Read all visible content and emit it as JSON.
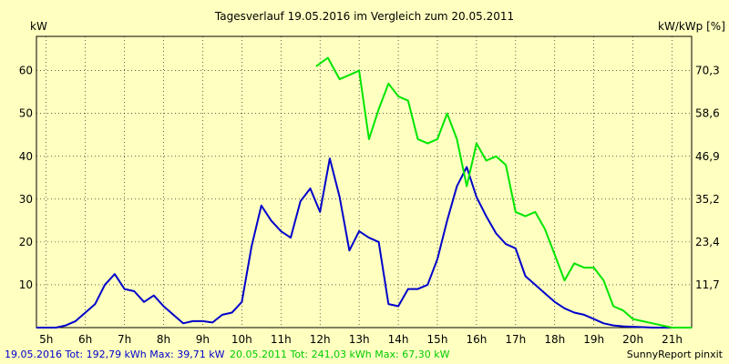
{
  "chart_data": {
    "type": "line",
    "title": "Tagesverlauf 19.05.2016 im Vergleich zum 20.05.2011",
    "ylabel_left": "kW",
    "ylabel_right": "kW/kWp [%]",
    "x_ticks": [
      "5h",
      "6h",
      "7h",
      "8h",
      "9h",
      "10h",
      "11h",
      "12h",
      "13h",
      "14h",
      "15h",
      "16h",
      "17h",
      "18h",
      "19h",
      "20h",
      "21h"
    ],
    "xlim": [
      4.75,
      21.5
    ],
    "ylim": [
      0,
      68
    ],
    "y_ticks_left": [
      "10",
      "20",
      "30",
      "40",
      "50",
      "60"
    ],
    "y_ticks_right": [
      "11,7",
      "23,4",
      "35,2",
      "46,9",
      "58,6",
      "70,3"
    ],
    "grid": true,
    "series": [
      {
        "name": "19.05.2016",
        "color": "#0000cc",
        "x": [
          4.75,
          5.25,
          5.5,
          5.75,
          6.0,
          6.25,
          6.5,
          6.75,
          7.0,
          7.25,
          7.5,
          7.75,
          8.0,
          8.25,
          8.5,
          8.75,
          9.0,
          9.25,
          9.5,
          9.75,
          10.0,
          10.25,
          10.5,
          10.75,
          11.0,
          11.25,
          11.5,
          11.75,
          12.0,
          12.25,
          12.5,
          12.75,
          13.0,
          13.25,
          13.5,
          13.75,
          14.0,
          14.25,
          14.5,
          14.75,
          15.0,
          15.25,
          15.5,
          15.75,
          16.0,
          16.25,
          16.5,
          16.75,
          17.0,
          17.25,
          17.5,
          17.75,
          18.0,
          18.25,
          18.5,
          18.75,
          19.0,
          19.25,
          19.5,
          19.75,
          20.0,
          20.25,
          20.5,
          20.75,
          21.0,
          21.5
        ],
        "y": [
          0,
          0,
          0.5,
          1.5,
          3.5,
          5.5,
          10,
          12.5,
          9,
          8.5,
          6,
          7.5,
          5,
          3,
          1,
          1.5,
          1.5,
          1.2,
          3,
          3.5,
          6,
          19,
          28.5,
          25,
          22.5,
          21,
          29.5,
          32.5,
          27,
          39.5,
          30.5,
          18,
          22.5,
          21,
          20,
          5.5,
          5,
          9,
          9,
          10,
          16,
          25,
          33,
          37.5,
          30.5,
          26,
          22,
          19.5,
          18.5,
          12,
          10,
          8,
          6,
          4.5,
          3.5,
          3,
          2,
          1,
          0.5,
          0.3,
          0.2,
          0.1,
          0,
          0,
          0,
          0
        ]
      },
      {
        "name": "20.05.2011",
        "color": "#00e600",
        "x": [
          11.9,
          12.2,
          12.5,
          12.75,
          13.0,
          13.25,
          13.5,
          13.75,
          14.0,
          14.25,
          14.5,
          14.75,
          15.0,
          15.25,
          15.5,
          15.75,
          16.0,
          16.25,
          16.5,
          16.75,
          17.0,
          17.25,
          17.5,
          17.75,
          18.0,
          18.25,
          18.5,
          18.75,
          19.0,
          19.25,
          19.5,
          19.75,
          20.0,
          20.5,
          21.0,
          21.5
        ],
        "y": [
          61,
          63,
          58,
          59,
          60,
          44,
          51,
          57,
          54,
          53,
          44,
          43,
          44,
          50,
          44,
          33,
          43,
          39,
          40,
          38,
          27,
          26,
          27,
          23,
          17,
          11,
          15,
          14,
          14,
          11,
          5,
          4,
          2,
          1,
          0,
          0
        ]
      }
    ],
    "footer": {
      "series1_text": "19.05.2016 Tot: 192,79 kWh Max: 39,71 kW",
      "series2_text": "20.05.2011 Tot: 241,03 kWh Max: 67,30 kW",
      "credit": "SunnyReport pinxit"
    }
  }
}
